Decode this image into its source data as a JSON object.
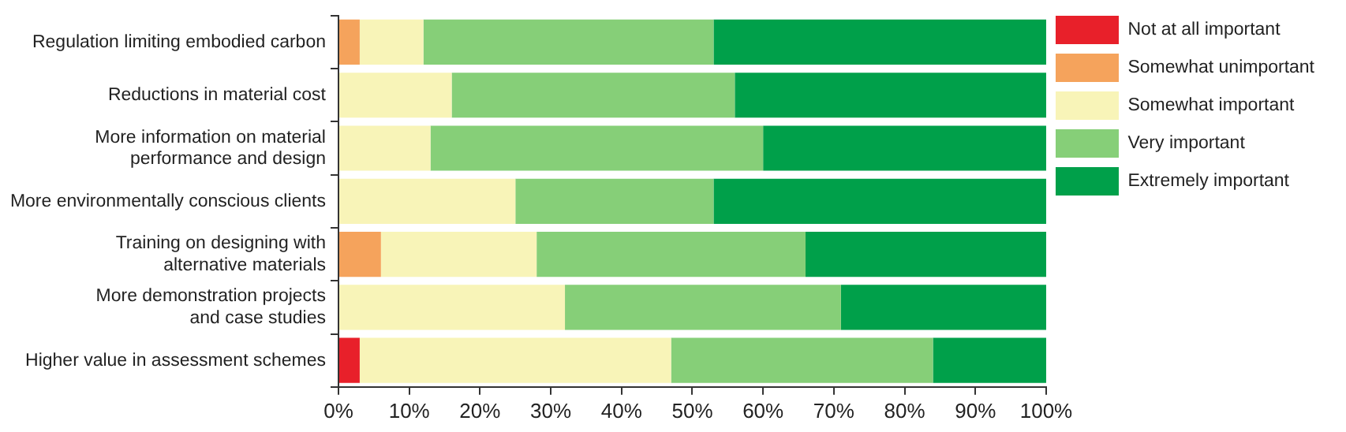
{
  "chart_data": {
    "type": "bar",
    "orientation": "horizontal",
    "stacked": true,
    "grid": false,
    "legend": "top right",
    "categories": [
      "Regulation limiting embodied carbon",
      "Reductions in material cost",
      "More information on material performance and design",
      "More environmentally conscious clients",
      "Training on designing with alternative materials",
      "More demonstration projects and case studies",
      "Higher value in assessment schemes"
    ],
    "series": [
      {
        "name": "Not at all important",
        "color": "#e8202a",
        "values": [
          0,
          0,
          0,
          0,
          0,
          0,
          3
        ]
      },
      {
        "name": "Somewhat unimportant",
        "color": "#f5a35c",
        "values": [
          3,
          0,
          0,
          0,
          6,
          0,
          0
        ]
      },
      {
        "name": "Somewhat important",
        "color": "#f8f4b8",
        "values": [
          9,
          16,
          13,
          25,
          22,
          32,
          44
        ]
      },
      {
        "name": "Very important",
        "color": "#86cf78",
        "values": [
          41,
          40,
          47,
          28,
          38,
          39,
          37
        ]
      },
      {
        "name": "Extremely important",
        "color": "#00a04a",
        "values": [
          47,
          44,
          40,
          47,
          34,
          29,
          16
        ]
      }
    ],
    "xlim": [
      0,
      100
    ],
    "xticks": [
      {
        "value": 0,
        "label": "0%"
      },
      {
        "value": 10,
        "label": "10%"
      },
      {
        "value": 20,
        "label": "20%"
      },
      {
        "value": 30,
        "label": "30%"
      },
      {
        "value": 40,
        "label": "40%"
      },
      {
        "value": 50,
        "label": "50%"
      },
      {
        "value": 60,
        "label": "60%"
      },
      {
        "value": 70,
        "label": "70%"
      },
      {
        "value": 80,
        "label": "80%"
      },
      {
        "value": 90,
        "label": "90%"
      },
      {
        "value": 100,
        "label": "100%"
      }
    ]
  }
}
